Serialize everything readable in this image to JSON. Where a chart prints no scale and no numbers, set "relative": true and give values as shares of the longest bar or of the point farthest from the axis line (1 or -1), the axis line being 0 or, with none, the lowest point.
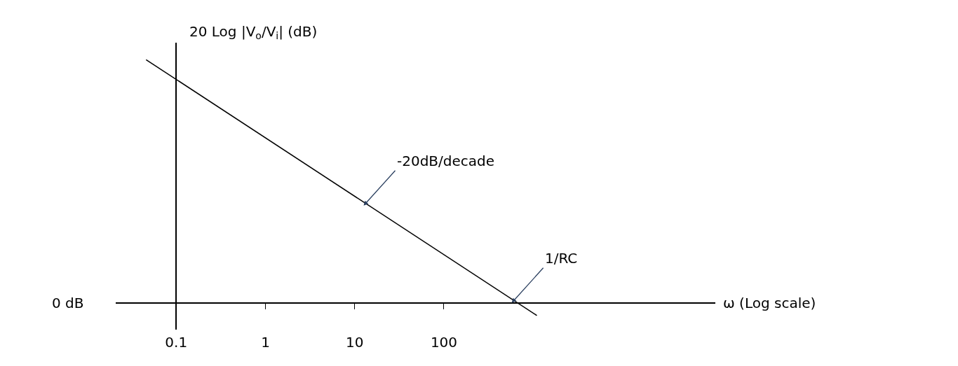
{
  "chart_data": {
    "type": "line",
    "relative": true,
    "log": "x",
    "xlabel": "ω (Log scale)",
    "ylabel": "20 Log |V$_{o}$/V$_{i}$| (dB)",
    "x": [
      0.046,
      1100
    ],
    "series": [
      {
        "color": "#000000",
        "values": [
          1,
          -0.052
        ]
      }
    ],
    "xlim": [
      0.021,
      110000
    ],
    "xticks": [
      0.1,
      1,
      10,
      100
    ],
    "annotations": [
      "0 dB",
      {
        "text": "-20dB/decade",
        "x": 12.6,
        "y": 0.4
      },
      {
        "text": "1/RC",
        "x": 575,
        "y": 0
      }
    ],
    "marker": "none",
    "line_style": "solid"
  }
}
